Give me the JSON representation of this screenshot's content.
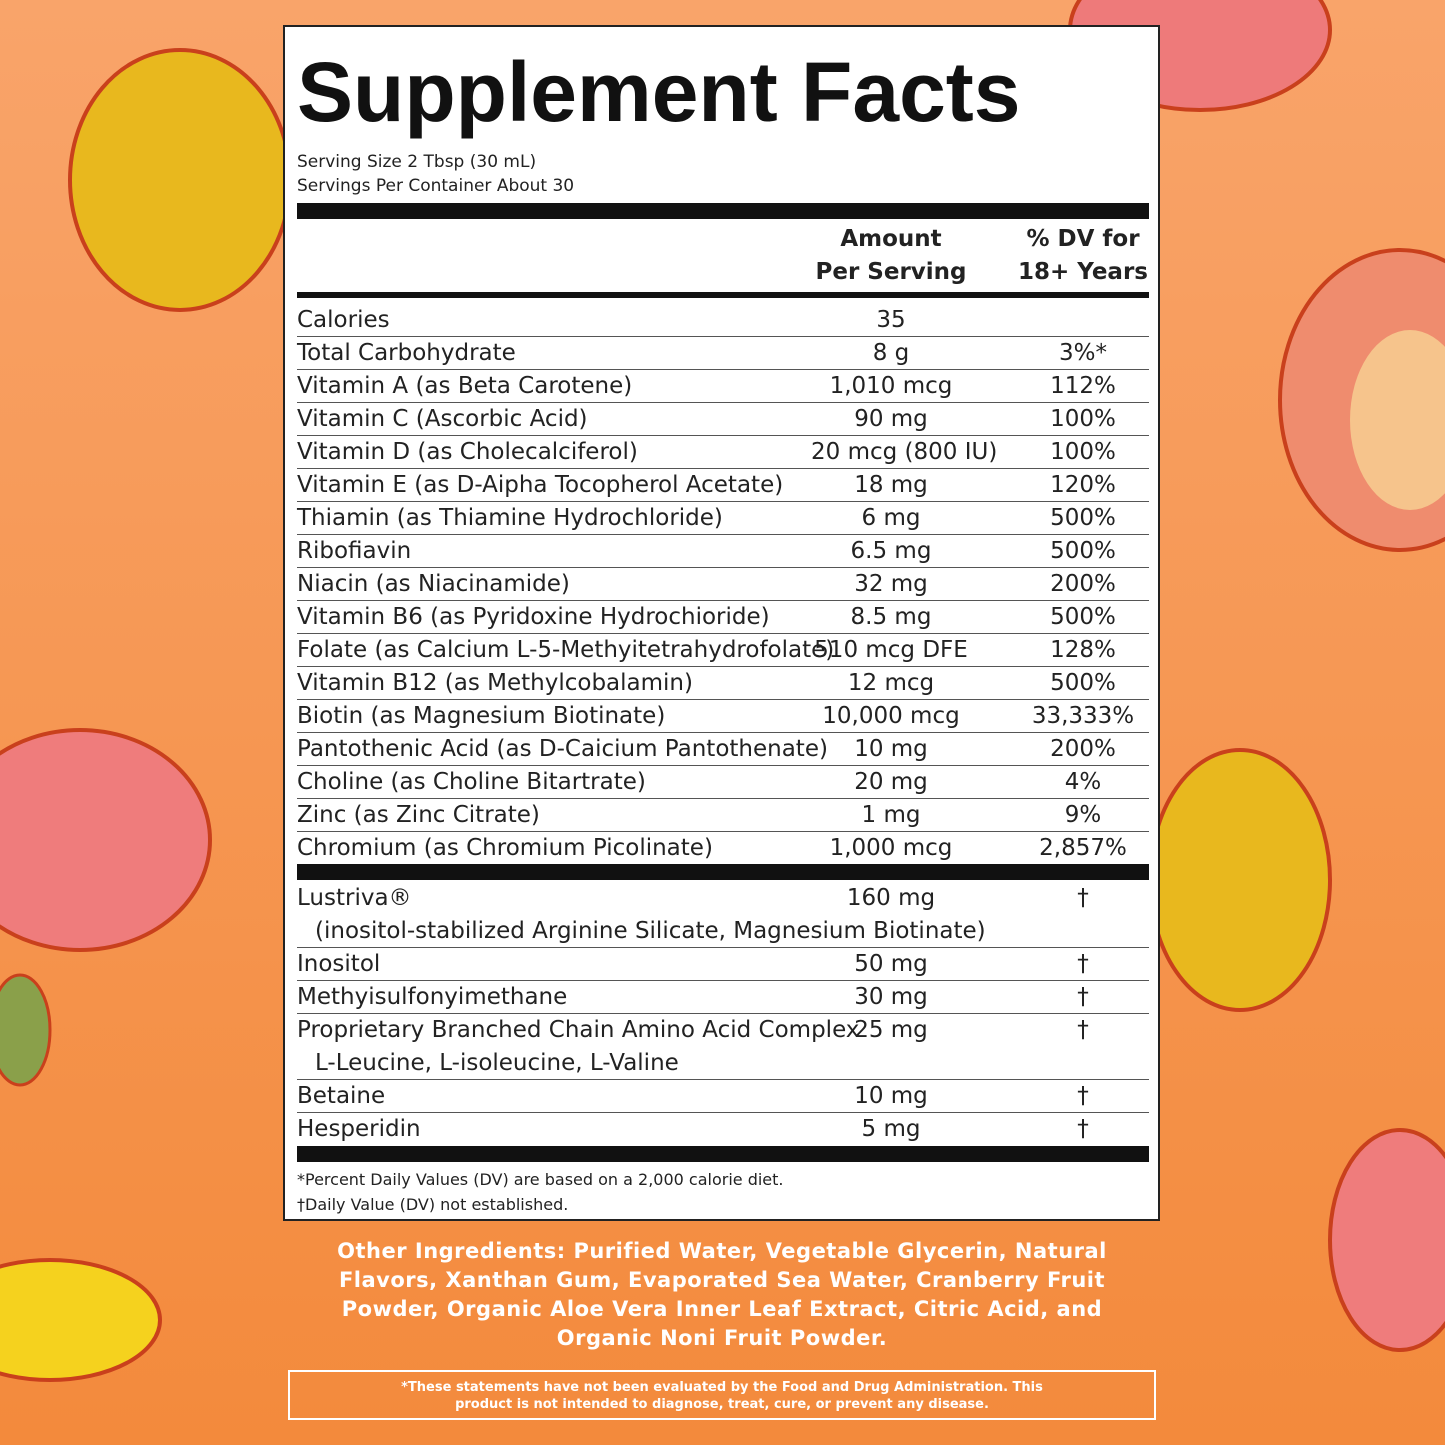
{
  "header": {
    "title": "Supplement Facts",
    "serving_size": "Serving Size 2 Tbsp (30 mL)",
    "servings_per_container": "Servings Per Container About 30"
  },
  "columns": {
    "amount": [
      "Amount",
      "Per Serving"
    ],
    "dv": [
      "% DV for",
      "18+ Years"
    ]
  },
  "rows": [
    {
      "name": "Calories",
      "amount": "35",
      "dv": ""
    },
    {
      "name": "Total Carbohydrate",
      "amount": "8 g",
      "dv": "3%*"
    },
    {
      "name": "Vitamin A (as Beta Carotene)",
      "amount": "1,010 mcg",
      "dv": "112%"
    },
    {
      "name": "Vitamin C (Ascorbic Acid)",
      "amount": "90 mg",
      "dv": "100%"
    },
    {
      "name": "Vitamin D (as Cholecalciferol)",
      "amount": "20 mcg (800 IU)",
      "dv": "100%"
    },
    {
      "name": "Vitamin E (as D-Aipha Tocopherol Acetate)",
      "amount": "18 mg",
      "dv": "120%"
    },
    {
      "name": "Thiamin (as Thiamine Hydrochloride)",
      "amount": "6 mg",
      "dv": "500%"
    },
    {
      "name": "Ribofiavin",
      "amount": "6.5 mg",
      "dv": "500%"
    },
    {
      "name": "Niacin (as Niacinamide)",
      "amount": "32 mg",
      "dv": "200%"
    },
    {
      "name": "Vitamin B6 (as Pyridoxine Hydrochioride)",
      "amount": "8.5 mg",
      "dv": "500%"
    },
    {
      "name": "Folate (as Calcium L-5-Methyitetrahydrofolate)",
      "amount": "510 mcg DFE",
      "dv": "128%"
    },
    {
      "name": "Vitamin B12 (as Methylcobalamin)",
      "amount": "12 mcg",
      "dv": "500%"
    },
    {
      "name": "Biotin (as Magnesium Biotinate)",
      "amount": "10,000 mcg",
      "dv": "33,333%"
    },
    {
      "name": "Pantothenic Acid (as D-Caicium Pantothenate)",
      "amount": "10 mg",
      "dv": "200%"
    },
    {
      "name": "Choline (as Choline Bitartrate)",
      "amount": "20 mg",
      "dv": "4%"
    },
    {
      "name": "Zinc (as Zinc Citrate)",
      "amount": "1 mg",
      "dv": "9%"
    },
    {
      "name": "Chromium (as Chromium Picolinate)",
      "amount": "1,000 mcg",
      "dv": "2,857%"
    }
  ],
  "rows2": [
    {
      "name": "Lustriva®",
      "sub": "(inositol-stabilized Arginine Silicate, Magnesium Biotinate)",
      "amount": "160 mg",
      "dv": "†"
    },
    {
      "name": "Inositol",
      "amount": "50 mg",
      "dv": "†"
    },
    {
      "name": "Methyisulfonyimethane",
      "amount": "30 mg",
      "dv": "†"
    },
    {
      "name": "Proprietary Branched Chain Amino Acid Complex",
      "sub": "L-Leucine, L-isoleucine, L-Valine",
      "amount": "25 mg",
      "dv": "†"
    },
    {
      "name": "Betaine",
      "amount": "10 mg",
      "dv": "†"
    },
    {
      "name": "Hesperidin",
      "amount": "5 mg",
      "dv": "†"
    }
  ],
  "footnotes": [
    "*Percent Daily Values (DV) are based on a 2,000 calorie diet.",
    "†Daily Value (DV) not established."
  ],
  "other_ingredients": "Other Ingredients: Purified Water, Vegetable Glycerin, Natural Flavors, Xanthan Gum, Evaporated Sea Water, Cranberry Fruit Powder, Organic Aloe Vera Inner Leaf Extract, Citric Acid, and Organic Noni Fruit Powder.",
  "disclaimer": "*These statements have not been evaluated by the Food and Drug Administration. This product is not intended to diagnose, treat, cure, or prevent any disease."
}
